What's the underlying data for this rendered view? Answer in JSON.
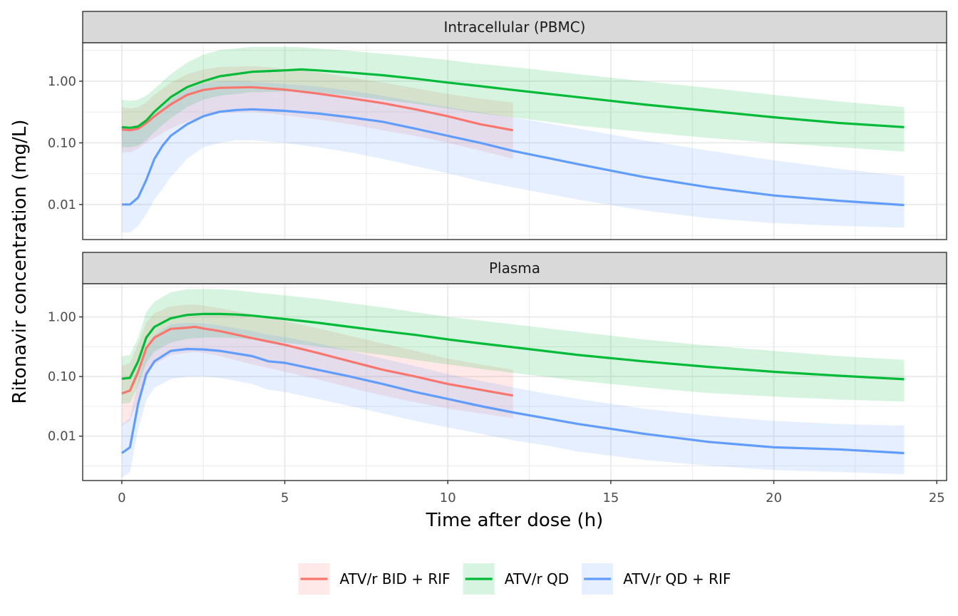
{
  "chart_data": {
    "type": "line",
    "xlabel": "Time after dose (h)",
    "ylabel": "Ritonavir concentration (mg/L)",
    "xlim": [
      -1.2,
      25.3
    ],
    "x_ticks": [
      0,
      5,
      10,
      15,
      20,
      25
    ],
    "x_tick_labels": [
      "0",
      "5",
      "10",
      "15",
      "20",
      "25"
    ],
    "y_scale": "log10",
    "y_ticks": [
      0.01,
      0.1,
      1
    ],
    "y_tick_labels": [
      "0.01",
      "0.10",
      "1.00"
    ],
    "grid": true,
    "legend_position": "bottom",
    "legend": [
      {
        "label": "ATV/r BID + RIF",
        "color": "#F8766D"
      },
      {
        "label": "ATV/r QD",
        "color": "#00BA38"
      },
      {
        "label": "ATV/r QD + RIF",
        "color": "#619CFF"
      }
    ],
    "panels": [
      {
        "title": "Intracellular (PBMC)",
        "ylim": [
          0.0027,
          4.2
        ],
        "series": [
          {
            "name": "ATV/r BID + RIF",
            "color": "#F8766D",
            "x": [
              0,
              0.25,
              0.5,
              0.75,
              1,
              1.5,
              2,
              2.5,
              3,
              4,
              5,
              6,
              7,
              8,
              9,
              10,
              11,
              12
            ],
            "median": [
              0.165,
              0.16,
              0.17,
              0.21,
              0.27,
              0.42,
              0.6,
              0.72,
              0.78,
              0.8,
              0.73,
              0.63,
              0.53,
              0.44,
              0.35,
              0.27,
              0.2,
              0.16
            ],
            "lower": [
              0.07,
              0.07,
              0.08,
              0.1,
              0.12,
              0.17,
              0.22,
              0.27,
              0.3,
              0.32,
              0.28,
              0.24,
              0.2,
              0.16,
              0.13,
              0.1,
              0.075,
              0.055
            ],
            "upper": [
              0.38,
              0.36,
              0.38,
              0.45,
              0.6,
              0.95,
              1.3,
              1.55,
              1.7,
              1.75,
              1.6,
              1.4,
              1.15,
              0.95,
              0.77,
              0.62,
              0.52,
              0.45
            ]
          },
          {
            "name": "ATV/r QD",
            "color": "#00BA38",
            "x": [
              0,
              0.25,
              0.5,
              0.75,
              1,
              1.5,
              2,
              2.5,
              3,
              4,
              5,
              5.5,
              6,
              7,
              8,
              9,
              10,
              11,
              12,
              14,
              16,
              18,
              20,
              22,
              24
            ],
            "median": [
              0.18,
              0.175,
              0.185,
              0.23,
              0.32,
              0.55,
              0.8,
              1.0,
              1.2,
              1.42,
              1.5,
              1.55,
              1.5,
              1.38,
              1.25,
              1.1,
              0.95,
              0.83,
              0.72,
              0.55,
              0.42,
              0.33,
              0.26,
              0.21,
              0.18
            ],
            "lower": [
              0.085,
              0.085,
              0.09,
              0.11,
              0.15,
              0.25,
              0.38,
              0.5,
              0.58,
              0.66,
              0.68,
              0.68,
              0.65,
              0.58,
              0.5,
              0.43,
              0.36,
              0.3,
              0.26,
              0.19,
              0.15,
              0.12,
              0.1,
              0.085,
              0.072
            ],
            "upper": [
              0.5,
              0.48,
              0.5,
              0.58,
              0.75,
              1.3,
              2.0,
              2.7,
              3.2,
              3.6,
              3.6,
              3.55,
              3.4,
              3.1,
              2.8,
              2.5,
              2.2,
              1.9,
              1.7,
              1.3,
              1.0,
              0.78,
              0.6,
              0.47,
              0.38
            ]
          },
          {
            "name": "ATV/r QD + RIF",
            "color": "#619CFF",
            "x": [
              0,
              0.25,
              0.5,
              0.75,
              1,
              1.25,
              1.5,
              2,
              2.5,
              3,
              3.5,
              4,
              5,
              6,
              7,
              8,
              9,
              10,
              11,
              12,
              14,
              16,
              18,
              20,
              22,
              24
            ],
            "median": [
              0.01,
              0.01,
              0.013,
              0.025,
              0.055,
              0.09,
              0.13,
              0.2,
              0.27,
              0.32,
              0.34,
              0.35,
              0.33,
              0.3,
              0.26,
              0.22,
              0.17,
              0.13,
              0.1,
              0.074,
              0.045,
              0.028,
              0.019,
              0.014,
              0.0115,
              0.0098
            ],
            "lower": [
              0.0035,
              0.0035,
              0.0045,
              0.007,
              0.012,
              0.018,
              0.028,
              0.055,
              0.085,
              0.1,
              0.11,
              0.11,
              0.1,
              0.085,
              0.07,
              0.055,
              0.042,
              0.032,
              0.024,
              0.019,
              0.012,
              0.008,
              0.006,
              0.005,
              0.0045,
              0.0042
            ],
            "upper": [
              0.16,
              0.16,
              0.17,
              0.2,
              0.28,
              0.38,
              0.5,
              0.75,
              0.92,
              1.0,
              1.0,
              0.98,
              0.9,
              0.82,
              0.7,
              0.58,
              0.47,
              0.38,
              0.31,
              0.26,
              0.17,
              0.11,
              0.075,
              0.052,
              0.038,
              0.029
            ]
          }
        ]
      },
      {
        "title": "Plasma",
        "ylim": [
          0.0018,
          3.6
        ],
        "series": [
          {
            "name": "ATV/r BID + RIF",
            "color": "#F8766D",
            "x": [
              0,
              0.25,
              0.5,
              0.75,
              1,
              1.5,
              2,
              2.25,
              2.5,
              3,
              4,
              5,
              6,
              7,
              8,
              9,
              10,
              11,
              12
            ],
            "median": [
              0.052,
              0.058,
              0.12,
              0.3,
              0.45,
              0.63,
              0.66,
              0.68,
              0.64,
              0.58,
              0.44,
              0.34,
              0.25,
              0.18,
              0.13,
              0.1,
              0.075,
              0.06,
              0.048
            ],
            "lower": [
              0.015,
              0.018,
              0.04,
              0.1,
              0.16,
              0.23,
              0.25,
              0.26,
              0.25,
              0.22,
              0.16,
              0.12,
              0.09,
              0.065,
              0.048,
              0.037,
              0.029,
              0.024,
              0.02
            ],
            "upper": [
              0.15,
              0.17,
              0.35,
              0.8,
              1.15,
              1.5,
              1.6,
              1.6,
              1.55,
              1.4,
              1.1,
              0.85,
              0.65,
              0.48,
              0.36,
              0.27,
              0.2,
              0.16,
              0.13
            ]
          },
          {
            "name": "ATV/r QD",
            "color": "#00BA38",
            "x": [
              0,
              0.25,
              0.5,
              0.75,
              1,
              1.5,
              2,
              2.5,
              3,
              3.5,
              4,
              5,
              6,
              7,
              8,
              9,
              10,
              11,
              12,
              14,
              16,
              18,
              20,
              22,
              24
            ],
            "median": [
              0.092,
              0.095,
              0.18,
              0.45,
              0.68,
              0.95,
              1.08,
              1.12,
              1.12,
              1.1,
              1.05,
              0.92,
              0.8,
              0.68,
              0.58,
              0.5,
              0.42,
              0.36,
              0.31,
              0.23,
              0.18,
              0.145,
              0.12,
              0.103,
              0.09
            ],
            "lower": [
              0.035,
              0.036,
              0.07,
              0.17,
              0.26,
              0.37,
              0.43,
              0.45,
              0.45,
              0.44,
              0.42,
              0.37,
              0.32,
              0.27,
              0.23,
              0.19,
              0.16,
              0.135,
              0.115,
              0.085,
              0.066,
              0.053,
              0.046,
              0.041,
              0.038
            ],
            "upper": [
              0.22,
              0.23,
              0.45,
              1.2,
              1.8,
              2.6,
              2.9,
              2.95,
              2.9,
              2.8,
              2.6,
              2.3,
              2.0,
              1.7,
              1.45,
              1.2,
              1.0,
              0.87,
              0.75,
              0.56,
              0.42,
              0.33,
              0.27,
              0.22,
              0.19
            ]
          },
          {
            "name": "ATV/r QD + RIF",
            "color": "#619CFF",
            "x": [
              0,
              0.25,
              0.5,
              0.75,
              1,
              1.5,
              2,
              2.5,
              3,
              4,
              4.5,
              5,
              6,
              7,
              8,
              9,
              10,
              11,
              12,
              13,
              14,
              16,
              18,
              20,
              22,
              24
            ],
            "median": [
              0.0052,
              0.0065,
              0.035,
              0.11,
              0.18,
              0.27,
              0.29,
              0.285,
              0.27,
              0.22,
              0.18,
              0.17,
              0.13,
              0.1,
              0.075,
              0.055,
              0.042,
              0.032,
              0.025,
              0.02,
              0.016,
              0.011,
              0.008,
              0.0065,
              0.006,
              0.0052
            ],
            "lower": [
              0.002,
              0.0025,
              0.013,
              0.04,
              0.065,
              0.09,
              0.1,
              0.1,
              0.095,
              0.075,
              0.06,
              0.055,
              0.042,
              0.032,
              0.024,
              0.018,
              0.014,
              0.011,
              0.0085,
              0.007,
              0.0055,
              0.004,
              0.0032,
              0.0027,
              0.0025,
              0.0023
            ],
            "upper": [
              0.016,
              0.02,
              0.085,
              0.28,
              0.5,
              0.75,
              0.8,
              0.78,
              0.72,
              0.58,
              0.5,
              0.46,
              0.36,
              0.27,
              0.2,
              0.15,
              0.11,
              0.085,
              0.066,
              0.052,
              0.042,
              0.029,
              0.022,
              0.018,
              0.016,
              0.015
            ]
          }
        ]
      }
    ]
  }
}
